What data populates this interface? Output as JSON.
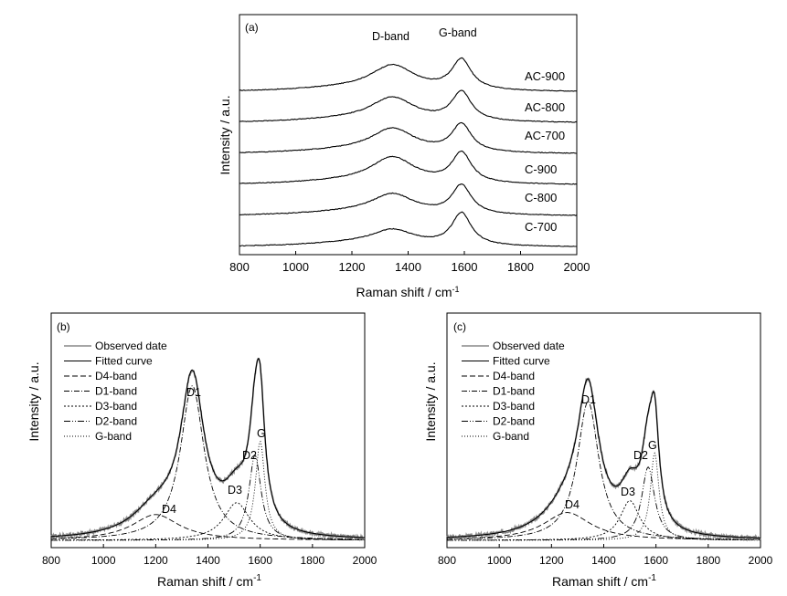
{
  "chart_data": [
    {
      "panel": "(a)",
      "type": "line",
      "xlabel": "Raman shift / cm",
      "xlabel_sup": "-1",
      "ylabel": "Intensity / a.u.",
      "xlim": [
        800,
        2000
      ],
      "xticks": [
        800,
        1000,
        1200,
        1400,
        1600,
        1800,
        2000
      ],
      "annotations": [
        {
          "text": "D-band",
          "x": 1350
        },
        {
          "text": "G-band",
          "x": 1590
        }
      ],
      "series": [
        {
          "name": "AC-900",
          "baseline": 0.0,
          "d_peak": 0.21,
          "g_peak": 0.26
        },
        {
          "name": "AC-800",
          "baseline": 0.0,
          "d_peak": 0.2,
          "g_peak": 0.25
        },
        {
          "name": "AC-700",
          "baseline": 0.0,
          "d_peak": 0.2,
          "g_peak": 0.24
        },
        {
          "name": "C-900",
          "baseline": 0.0,
          "d_peak": 0.22,
          "g_peak": 0.26
        },
        {
          "name": "C-800",
          "baseline": 0.0,
          "d_peak": 0.17,
          "g_peak": 0.25
        },
        {
          "name": "C-700",
          "baseline": 0.0,
          "d_peak": 0.13,
          "g_peak": 0.28
        }
      ]
    },
    {
      "panel": "(b)",
      "type": "line",
      "xlabel": "Raman shift / cm",
      "xlabel_sup": "-1",
      "ylabel": "Intensity / a.u.",
      "xlim": [
        800,
        2000
      ],
      "xticks": [
        800,
        1000,
        1200,
        1400,
        1600,
        1800,
        2000
      ],
      "ylim": [
        0,
        1.0
      ],
      "legend": [
        "Observed date",
        "Fitted curve",
        "D4-band",
        "D1-band",
        "D3-band",
        "D2-band",
        "G-band"
      ],
      "bands": [
        {
          "name": "D4",
          "center": 1200,
          "hwhm": 110,
          "height": 0.13
        },
        {
          "name": "D1",
          "center": 1340,
          "hwhm": 55,
          "height": 0.78
        },
        {
          "name": "D3",
          "center": 1510,
          "hwhm": 60,
          "height": 0.19
        },
        {
          "name": "D2",
          "center": 1580,
          "hwhm": 28,
          "height": 0.43
        },
        {
          "name": "G",
          "center": 1600,
          "hwhm": 22,
          "height": 0.5
        }
      ]
    },
    {
      "panel": "(c)",
      "type": "line",
      "xlabel": "Raman shift / cm",
      "xlabel_sup": "-1",
      "ylabel": "Intensity / a.u.",
      "xlim": [
        800,
        2000
      ],
      "xticks": [
        800,
        1000,
        1200,
        1400,
        1600,
        1800,
        2000
      ],
      "ylim": [
        0,
        1.0
      ],
      "legend": [
        "Observed date",
        "Fitted curve",
        "D4-band",
        "D1-band",
        "D3-band",
        "D2-band",
        "G-band"
      ],
      "bands": [
        {
          "name": "D4",
          "center": 1260,
          "hwhm": 110,
          "height": 0.14
        },
        {
          "name": "D1",
          "center": 1340,
          "hwhm": 50,
          "height": 0.7
        },
        {
          "name": "D3",
          "center": 1500,
          "hwhm": 45,
          "height": 0.2
        },
        {
          "name": "D2",
          "center": 1570,
          "hwhm": 30,
          "height": 0.37
        },
        {
          "name": "G",
          "center": 1595,
          "hwhm": 20,
          "height": 0.44
        }
      ]
    }
  ]
}
